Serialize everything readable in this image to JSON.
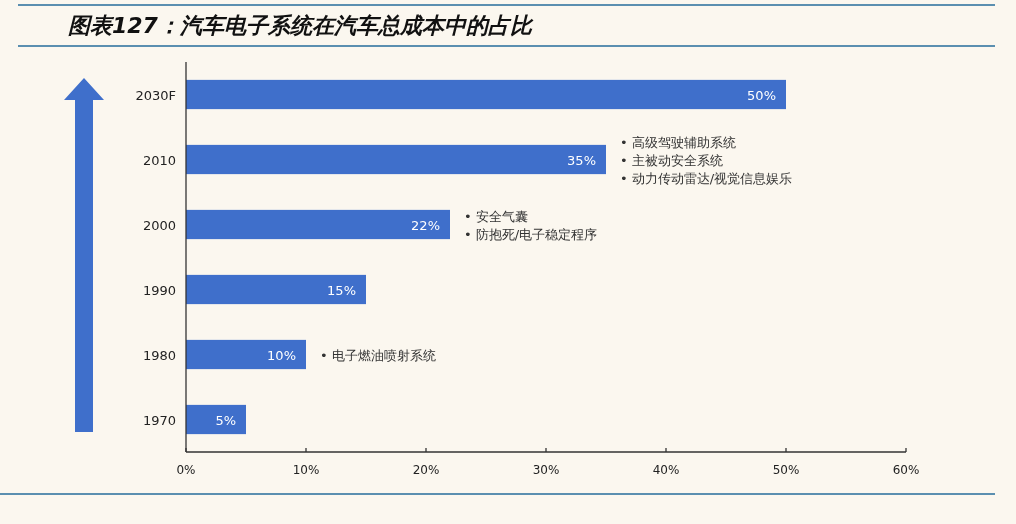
{
  "chart_data": {
    "type": "bar",
    "orientation": "horizontal",
    "title": "图表127：汽车电子系统在汽车总成本中的占比",
    "categories": [
      "2030F",
      "2010",
      "2000",
      "1990",
      "1980",
      "1970"
    ],
    "values": [
      50,
      35,
      22,
      15,
      10,
      5
    ],
    "value_labels": [
      "50%",
      "35%",
      "22%",
      "15%",
      "10%",
      "5%"
    ],
    "color": "#3f6fcb",
    "xlim": [
      0,
      60
    ],
    "xticks": [
      {
        "value": 0,
        "label": "0%"
      },
      {
        "value": 10,
        "label": "10%"
      },
      {
        "value": 20,
        "label": "20%"
      },
      {
        "value": 30,
        "label": "30%"
      },
      {
        "value": 40,
        "label": "40%"
      },
      {
        "value": 50,
        "label": "50%"
      },
      {
        "value": 60,
        "label": "60%"
      }
    ],
    "annotations": [
      {
        "text": "• 高级驾驶辅助系统",
        "x": 35,
        "y": "2010"
      },
      {
        "text": "• 主被动安全系统",
        "x": 35,
        "y": "2010"
      },
      {
        "text": "• 动力传动雷达/视觉信息娱乐",
        "x": 35,
        "y": "2010"
      },
      {
        "text": "• 安全气囊",
        "x": 22,
        "y": "2000"
      },
      {
        "text": "• 防抱死/电子稳定程序",
        "x": 22,
        "y": "2000"
      },
      {
        "text": "• 电子燃油喷射系统",
        "x": 10,
        "y": "1980"
      }
    ]
  }
}
